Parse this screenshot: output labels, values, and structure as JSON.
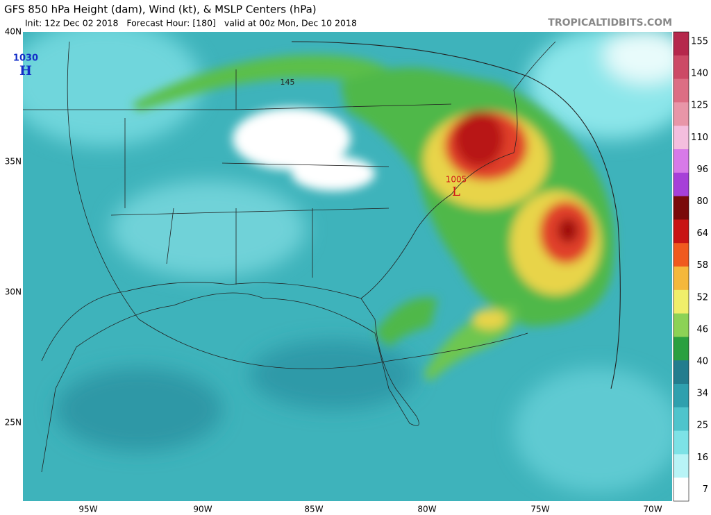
{
  "header": {
    "title": "GFS 850 hPa Height (dam), Wind (kt), & MSLP Centers (hPa)",
    "subtitle": "Init: 12z Dec 02 2018   Forecast Hour: [180]   valid at 00z Mon, Dec 10 2018",
    "source": "TROPICALTIDBITS.COM"
  },
  "map": {
    "lat_labels": [
      "40N",
      "35N",
      "30N",
      "25N"
    ],
    "lon_labels": [
      "95W",
      "90W",
      "85W",
      "80W",
      "75W",
      "70W"
    ],
    "centers": [
      {
        "pressure": "1030",
        "symbol": "H"
      },
      {
        "pressure": "1005",
        "symbol": "L"
      }
    ],
    "contour_labels": [
      "145"
    ]
  },
  "colorbar": {
    "labels": [
      "155",
      "140",
      "125",
      "110",
      "96",
      "80",
      "64",
      "58",
      "52",
      "46",
      "40",
      "34",
      "25",
      "16",
      "7"
    ]
  }
}
